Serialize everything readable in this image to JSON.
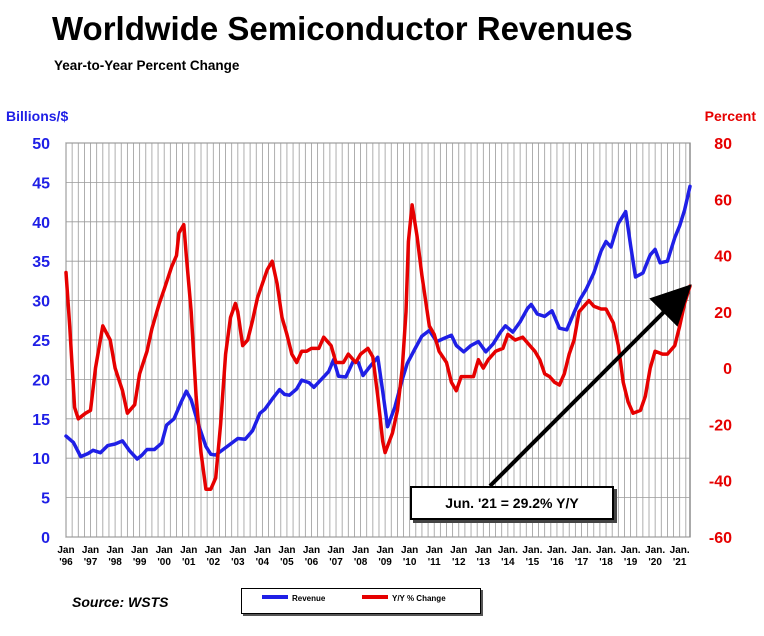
{
  "title": "Worldwide Semiconductor Revenues",
  "subtitle": "Year-to-Year Percent Change",
  "source": "Source: WSTS",
  "colors": {
    "revenue": "#1f1fe6",
    "yoy": "#e60000",
    "grid": "#9a9a9a"
  },
  "chart_data": {
    "type": "line",
    "title": "Worldwide Semiconductor Revenues",
    "subtitle": "Year-to-Year Percent Change",
    "y_left": {
      "label": "Billions/$",
      "range": [
        0,
        50
      ],
      "ticks": [
        "0",
        "5",
        "10",
        "15",
        "20",
        "25",
        "30",
        "35",
        "40",
        "45",
        "50"
      ]
    },
    "y_right": {
      "label": "Percent",
      "range": [
        -60,
        80
      ],
      "ticks": [
        "-60",
        "-40",
        "-20",
        "0",
        "20",
        "40",
        "60",
        "80"
      ]
    },
    "x_range": [
      1996.0,
      2021.42
    ],
    "x_ticks": [
      {
        "year": 1996,
        "line1": "Jan",
        "line2": "'96"
      },
      {
        "year": 1997,
        "line1": "Jan",
        "line2": "'97"
      },
      {
        "year": 1998,
        "line1": "Jan",
        "line2": "'98"
      },
      {
        "year": 1999,
        "line1": "Jan",
        "line2": "'99"
      },
      {
        "year": 2000,
        "line1": "Jan",
        "line2": "'00"
      },
      {
        "year": 2001,
        "line1": "Jan",
        "line2": "'01"
      },
      {
        "year": 2002,
        "line1": "Jan",
        "line2": "'02"
      },
      {
        "year": 2003,
        "line1": "Jan",
        "line2": "'03"
      },
      {
        "year": 2004,
        "line1": "Jan",
        "line2": "'04"
      },
      {
        "year": 2005,
        "line1": "Jan",
        "line2": "'05"
      },
      {
        "year": 2006,
        "line1": "Jan",
        "line2": "'06"
      },
      {
        "year": 2007,
        "line1": "Jan",
        "line2": "'07"
      },
      {
        "year": 2008,
        "line1": "Jan",
        "line2": "'08"
      },
      {
        "year": 2009,
        "line1": "Jan",
        "line2": "'09"
      },
      {
        "year": 2010,
        "line1": "Jan",
        "line2": "'10"
      },
      {
        "year": 2011,
        "line1": "Jan",
        "line2": "'11"
      },
      {
        "year": 2012,
        "line1": "Jan",
        "line2": "'12"
      },
      {
        "year": 2013,
        "line1": "Jan",
        "line2": "'13"
      },
      {
        "year": 2014,
        "line1": "Jan.",
        "line2": "'14"
      },
      {
        "year": 2015,
        "line1": "Jan.",
        "line2": "'15"
      },
      {
        "year": 2016,
        "line1": "Jan.",
        "line2": "'16"
      },
      {
        "year": 2017,
        "line1": "Jan.",
        "line2": "'17"
      },
      {
        "year": 2018,
        "line1": "Jan.",
        "line2": "'18"
      },
      {
        "year": 2019,
        "line1": "Jan.",
        "line2": "'19"
      },
      {
        "year": 2020,
        "line1": "Jan.",
        "line2": "'20"
      },
      {
        "year": 2021,
        "line1": "Jan.",
        "line2": "'21"
      }
    ],
    "series": [
      {
        "name": "Revenue",
        "axis": "left",
        "points": [
          [
            1996.0,
            12.8
          ],
          [
            1996.3,
            12.0
          ],
          [
            1996.6,
            10.2
          ],
          [
            1996.9,
            10.6
          ],
          [
            1997.1,
            11.0
          ],
          [
            1997.4,
            10.7
          ],
          [
            1997.7,
            11.6
          ],
          [
            1998.0,
            11.8
          ],
          [
            1998.3,
            12.2
          ],
          [
            1998.6,
            10.9
          ],
          [
            1998.9,
            9.9
          ],
          [
            1999.1,
            10.4
          ],
          [
            1999.3,
            11.1
          ],
          [
            1999.6,
            11.1
          ],
          [
            1999.9,
            11.9
          ],
          [
            2000.1,
            14.2
          ],
          [
            2000.4,
            15.0
          ],
          [
            2000.7,
            17.2
          ],
          [
            2000.9,
            18.5
          ],
          [
            2001.1,
            17.4
          ],
          [
            2001.4,
            14.2
          ],
          [
            2001.7,
            11.5
          ],
          [
            2001.9,
            10.5
          ],
          [
            2002.1,
            10.4
          ],
          [
            2002.4,
            11.1
          ],
          [
            2002.7,
            11.8
          ],
          [
            2003.0,
            12.5
          ],
          [
            2003.3,
            12.4
          ],
          [
            2003.6,
            13.5
          ],
          [
            2003.9,
            15.7
          ],
          [
            2004.1,
            16.2
          ],
          [
            2004.4,
            17.5
          ],
          [
            2004.7,
            18.7
          ],
          [
            2004.9,
            18.1
          ],
          [
            2005.1,
            18.0
          ],
          [
            2005.4,
            18.8
          ],
          [
            2005.6,
            19.9
          ],
          [
            2005.9,
            19.6
          ],
          [
            2006.1,
            19.0
          ],
          [
            2006.4,
            20.0
          ],
          [
            2006.7,
            21.0
          ],
          [
            2006.9,
            22.5
          ],
          [
            2007.1,
            20.4
          ],
          [
            2007.4,
            20.3
          ],
          [
            2007.7,
            22.3
          ],
          [
            2007.9,
            22.2
          ],
          [
            2008.1,
            20.5
          ],
          [
            2008.4,
            21.7
          ],
          [
            2008.7,
            22.8
          ],
          [
            2008.9,
            18.5
          ],
          [
            2009.1,
            14.0
          ],
          [
            2009.4,
            16.5
          ],
          [
            2009.7,
            20.0
          ],
          [
            2009.9,
            22.0
          ],
          [
            2010.2,
            23.8
          ],
          [
            2010.5,
            25.5
          ],
          [
            2010.8,
            26.2
          ],
          [
            2011.1,
            24.8
          ],
          [
            2011.4,
            25.2
          ],
          [
            2011.7,
            25.6
          ],
          [
            2011.9,
            24.3
          ],
          [
            2012.2,
            23.5
          ],
          [
            2012.5,
            24.3
          ],
          [
            2012.8,
            24.8
          ],
          [
            2013.1,
            23.5
          ],
          [
            2013.4,
            24.5
          ],
          [
            2013.7,
            26.0
          ],
          [
            2013.9,
            26.8
          ],
          [
            2014.2,
            26.0
          ],
          [
            2014.5,
            27.3
          ],
          [
            2014.8,
            29.0
          ],
          [
            2014.95,
            29.5
          ],
          [
            2015.2,
            28.3
          ],
          [
            2015.5,
            28.0
          ],
          [
            2015.8,
            28.7
          ],
          [
            2016.1,
            26.5
          ],
          [
            2016.4,
            26.3
          ],
          [
            2016.7,
            28.5
          ],
          [
            2016.95,
            30.2
          ],
          [
            2017.2,
            31.5
          ],
          [
            2017.5,
            33.5
          ],
          [
            2017.8,
            36.3
          ],
          [
            2018.0,
            37.5
          ],
          [
            2018.2,
            36.8
          ],
          [
            2018.5,
            39.8
          ],
          [
            2018.8,
            41.3
          ],
          [
            2019.0,
            37.0
          ],
          [
            2019.2,
            33.0
          ],
          [
            2019.5,
            33.5
          ],
          [
            2019.8,
            35.8
          ],
          [
            2020.0,
            36.5
          ],
          [
            2020.2,
            34.8
          ],
          [
            2020.5,
            35.0
          ],
          [
            2020.8,
            38.0
          ],
          [
            2021.0,
            39.5
          ],
          [
            2021.2,
            41.5
          ],
          [
            2021.42,
            44.5
          ]
        ]
      },
      {
        "name": "Y/Y % Change",
        "axis": "right",
        "points": [
          [
            1996.0,
            34
          ],
          [
            1996.15,
            15
          ],
          [
            1996.35,
            -14
          ],
          [
            1996.5,
            -18
          ],
          [
            1996.8,
            -16
          ],
          [
            1997.0,
            -15
          ],
          [
            1997.2,
            0
          ],
          [
            1997.5,
            15
          ],
          [
            1997.8,
            10
          ],
          [
            1998.0,
            0
          ],
          [
            1998.3,
            -8
          ],
          [
            1998.5,
            -16
          ],
          [
            1998.8,
            -13
          ],
          [
            1999.0,
            -2
          ],
          [
            1999.3,
            6
          ],
          [
            1999.5,
            14
          ],
          [
            1999.8,
            23
          ],
          [
            2000.0,
            28
          ],
          [
            2000.3,
            36
          ],
          [
            2000.5,
            40
          ],
          [
            2000.6,
            48
          ],
          [
            2000.8,
            51
          ],
          [
            2000.9,
            40
          ],
          [
            2001.1,
            20
          ],
          [
            2001.3,
            -10
          ],
          [
            2001.5,
            -30
          ],
          [
            2001.7,
            -43
          ],
          [
            2001.9,
            -43
          ],
          [
            2002.1,
            -39
          ],
          [
            2002.3,
            -20
          ],
          [
            2002.5,
            5
          ],
          [
            2002.7,
            18
          ],
          [
            2002.9,
            23
          ],
          [
            2003.0,
            20
          ],
          [
            2003.2,
            8
          ],
          [
            2003.4,
            10
          ],
          [
            2003.6,
            17
          ],
          [
            2003.8,
            25
          ],
          [
            2004.0,
            30
          ],
          [
            2004.2,
            35
          ],
          [
            2004.4,
            38
          ],
          [
            2004.6,
            30
          ],
          [
            2004.8,
            18
          ],
          [
            2005.0,
            12
          ],
          [
            2005.2,
            5
          ],
          [
            2005.4,
            2
          ],
          [
            2005.6,
            6
          ],
          [
            2005.8,
            6
          ],
          [
            2006.0,
            7
          ],
          [
            2006.3,
            7
          ],
          [
            2006.5,
            11
          ],
          [
            2006.8,
            8
          ],
          [
            2007.0,
            2
          ],
          [
            2007.3,
            2
          ],
          [
            2007.5,
            5
          ],
          [
            2007.8,
            2
          ],
          [
            2008.0,
            5
          ],
          [
            2008.3,
            7
          ],
          [
            2008.5,
            4
          ],
          [
            2008.7,
            -10
          ],
          [
            2008.9,
            -26
          ],
          [
            2009.0,
            -30
          ],
          [
            2009.3,
            -23
          ],
          [
            2009.5,
            -15
          ],
          [
            2009.7,
            0
          ],
          [
            2009.85,
            20
          ],
          [
            2009.95,
            45
          ],
          [
            2010.1,
            58
          ],
          [
            2010.3,
            47
          ],
          [
            2010.5,
            33
          ],
          [
            2010.8,
            15
          ],
          [
            2011.0,
            12
          ],
          [
            2011.2,
            6
          ],
          [
            2011.5,
            2
          ],
          [
            2011.7,
            -5
          ],
          [
            2011.9,
            -8
          ],
          [
            2012.1,
            -3
          ],
          [
            2012.4,
            -3
          ],
          [
            2012.6,
            -3
          ],
          [
            2012.8,
            3
          ],
          [
            2013.0,
            0
          ],
          [
            2013.2,
            3
          ],
          [
            2013.5,
            6
          ],
          [
            2013.8,
            7
          ],
          [
            2014.0,
            12
          ],
          [
            2014.3,
            10
          ],
          [
            2014.6,
            11
          ],
          [
            2014.9,
            8
          ],
          [
            2015.1,
            6
          ],
          [
            2015.3,
            3
          ],
          [
            2015.5,
            -2
          ],
          [
            2015.7,
            -3
          ],
          [
            2015.9,
            -5
          ],
          [
            2016.1,
            -6
          ],
          [
            2016.3,
            -2
          ],
          [
            2016.5,
            5
          ],
          [
            2016.7,
            10
          ],
          [
            2016.9,
            20
          ],
          [
            2017.1,
            22
          ],
          [
            2017.3,
            24
          ],
          [
            2017.5,
            22
          ],
          [
            2017.8,
            21
          ],
          [
            2018.0,
            21
          ],
          [
            2018.3,
            16
          ],
          [
            2018.5,
            8
          ],
          [
            2018.7,
            -5
          ],
          [
            2018.9,
            -12
          ],
          [
            2019.1,
            -16
          ],
          [
            2019.4,
            -15
          ],
          [
            2019.6,
            -10
          ],
          [
            2019.8,
            0
          ],
          [
            2020.0,
            6
          ],
          [
            2020.3,
            5
          ],
          [
            2020.5,
            5
          ],
          [
            2020.8,
            8
          ],
          [
            2021.0,
            15
          ],
          [
            2021.2,
            23
          ],
          [
            2021.42,
            29.2
          ]
        ]
      }
    ],
    "annotation": {
      "text": "Jun. '21 = 29.2% Y/Y",
      "target": [
        2021.42,
        29.2
      ]
    },
    "legend": {
      "position": "bottom-center",
      "entries": [
        "Revenue",
        "Y/Y % Change"
      ]
    }
  }
}
